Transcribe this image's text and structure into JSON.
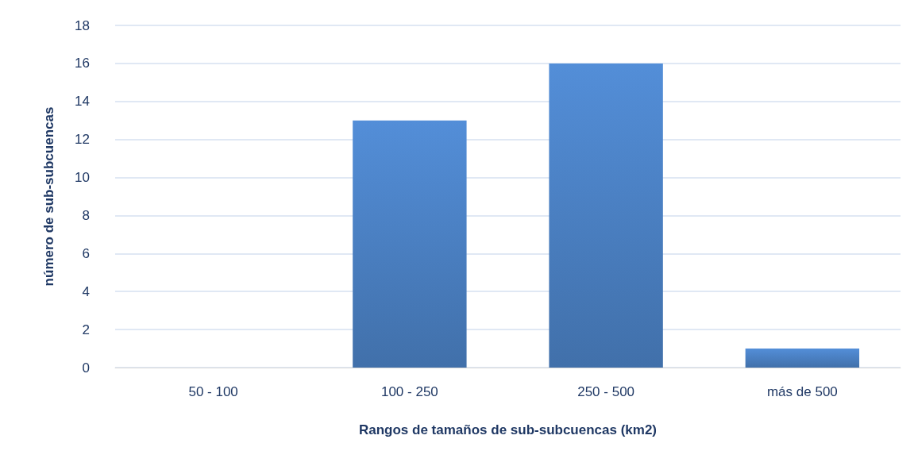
{
  "chart_data": {
    "type": "bar",
    "xlabel": "Rangos de tamaños de sub-subcuencas (km2)",
    "ylabel": "número de sub-subcuencas",
    "categories": [
      "50 - 100",
      "100 - 250",
      "250 - 500",
      "más de 500"
    ],
    "values": [
      0,
      13,
      16,
      1
    ],
    "color": "#4a7fc1",
    "ylim": [
      0,
      18
    ],
    "yticks": [
      0,
      2,
      4,
      6,
      8,
      10,
      12,
      14,
      16,
      18
    ],
    "grid": "y"
  }
}
